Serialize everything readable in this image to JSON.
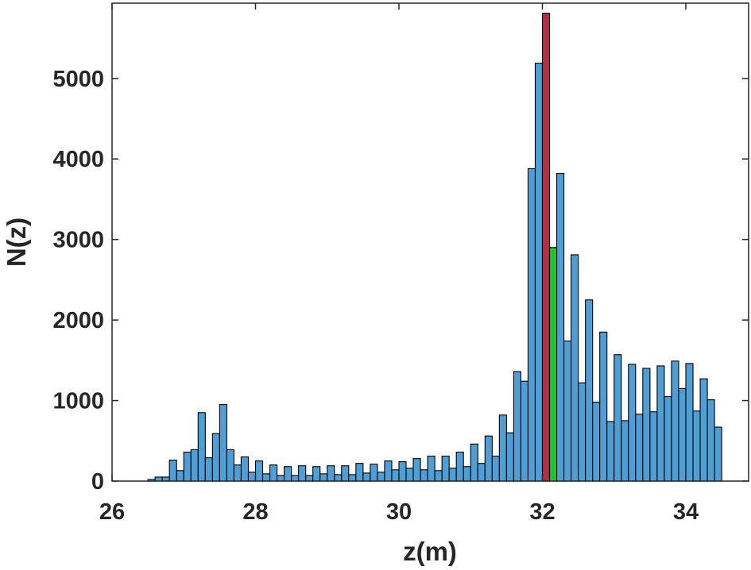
{
  "chart_data": {
    "type": "bar",
    "title": "",
    "xlabel": "z(m)",
    "ylabel": "N(z)",
    "xlim": [
      26,
      34.4
    ],
    "ylim": [
      0,
      5900
    ],
    "xticks": [
      26,
      28,
      30,
      32,
      34
    ],
    "yticks": [
      0,
      1000,
      2000,
      3000,
      4000,
      5000
    ],
    "xtick_labels": [
      "26",
      "28",
      "30",
      "32",
      "34"
    ],
    "ytick_labels": [
      "0",
      "1000",
      "2000",
      "3000",
      "4000",
      "5000"
    ],
    "grid": false,
    "bin_width": 0.1,
    "bin_start": 26.4,
    "values": [
      0,
      20,
      50,
      50,
      260,
      130,
      360,
      390,
      850,
      290,
      590,
      950,
      390,
      200,
      300,
      110,
      250,
      90,
      200,
      70,
      180,
      70,
      190,
      70,
      180,
      90,
      190,
      80,
      190,
      80,
      220,
      100,
      210,
      110,
      250,
      140,
      240,
      160,
      280,
      140,
      310,
      130,
      310,
      160,
      360,
      180,
      460,
      220,
      560,
      310,
      820,
      600,
      1360,
      1240,
      3880,
      5190,
      5810,
      2900,
      3820,
      1740,
      2810,
      1220,
      2250,
      980,
      1850,
      740,
      1570,
      750,
      1450,
      830,
      1400,
      860,
      1430,
      1050,
      1490,
      1150,
      1460,
      870,
      1270,
      1010,
      670
    ],
    "colors": {
      "default": "#4f9fd6",
      "highlight_red": "#b22f48",
      "highlight_green": "#22c234",
      "edge": "#000000"
    },
    "highlight_red_index": 56,
    "highlight_green_index": 57
  }
}
